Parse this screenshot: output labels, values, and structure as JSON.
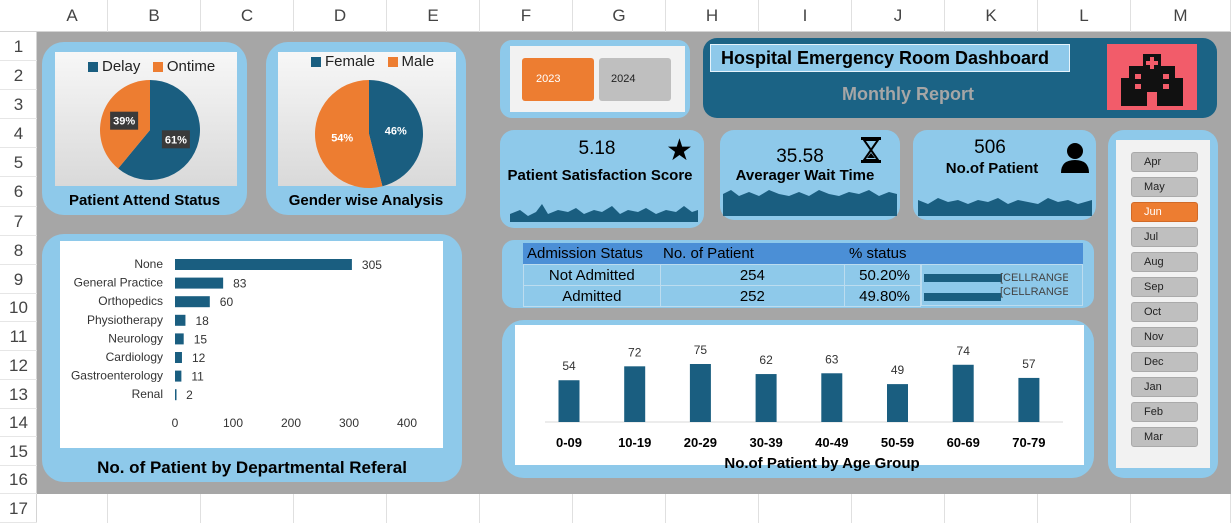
{
  "columns": [
    "A",
    "B",
    "C",
    "D",
    "E",
    "F",
    "G",
    "H",
    "I",
    "J",
    "K",
    "L",
    "M"
  ],
  "rows": [
    "1",
    "2",
    "3",
    "4",
    "5",
    "6",
    "7",
    "8",
    "9",
    "10",
    "11",
    "12",
    "13",
    "14",
    "15",
    "16",
    "17"
  ],
  "colors": {
    "accent": "#1a5e80",
    "orange": "#ed7d31",
    "panel": "#8ec9ea",
    "bg": "#a6a6a6",
    "title_bar": "#1b6385"
  },
  "attend": {
    "title": "Patient Attend Status",
    "legend": [
      "Delay",
      "Ontime"
    ],
    "values": [
      61,
      39
    ],
    "labels": [
      "61%",
      "39%"
    ]
  },
  "gender": {
    "title": "Gender wise Analysis",
    "legend": [
      "Female",
      "Male"
    ],
    "values": [
      46,
      54
    ],
    "labels": [
      "46%",
      "54%"
    ]
  },
  "years": {
    "y2023": "2023",
    "y2024": "2024"
  },
  "header": {
    "title": "Hospital Emergency Room Dashboard",
    "subtitle": "Monthly Report",
    "icon": "hospital-icon"
  },
  "kpis": {
    "satisfaction": {
      "value": "5.18",
      "label": "Patient Satisfaction Score",
      "icon": "star-icon"
    },
    "wait": {
      "value": "35.58",
      "label": "Averager Wait Time",
      "icon": "hourglass-icon"
    },
    "patients": {
      "value": "506",
      "label": "No.of Patient",
      "icon": "person-icon"
    }
  },
  "admission": {
    "headers": [
      "Admission Status",
      "No. of Patient",
      "% status"
    ],
    "rows": [
      {
        "status": "Not Admitted",
        "count": "254",
        "pct": "50.20%",
        "bar": 0.502,
        "range": "[CELLRANGE]"
      },
      {
        "status": "Admitted",
        "count": "252",
        "pct": "49.80%",
        "bar": 0.498,
        "range": "[CELLRANGE]"
      }
    ]
  },
  "months": [
    "Apr",
    "May",
    "Jun",
    "Jul",
    "Aug",
    "Sep",
    "Oct",
    "Nov",
    "Dec",
    "Jan",
    "Feb",
    "Mar"
  ],
  "selected_month": "Jun",
  "chart_data": [
    {
      "type": "pie",
      "title": "Patient Attend Status",
      "categories": [
        "Delay",
        "Ontime"
      ],
      "values": [
        61,
        39
      ],
      "legend": "top"
    },
    {
      "type": "pie",
      "title": "Gender wise Analysis",
      "categories": [
        "Female",
        "Male"
      ],
      "values": [
        46,
        54
      ],
      "legend": "top"
    },
    {
      "type": "bar",
      "orientation": "horizontal",
      "title": "No. of Patient by Departmental Referal",
      "categories": [
        "None",
        "General Practice",
        "Orthopedics",
        "Physiotherapy",
        "Neurology",
        "Cardiology",
        "Gastroenterology",
        "Renal"
      ],
      "values": [
        305,
        83,
        60,
        18,
        15,
        12,
        11,
        2
      ],
      "xlim": [
        0,
        400
      ],
      "xticks": [
        "0",
        "100",
        "200",
        "300",
        "400"
      ]
    },
    {
      "type": "bar",
      "title": "No.of Patient by Age Group",
      "categories": [
        "0-09",
        "10-19",
        "20-29",
        "30-39",
        "40-49",
        "50-59",
        "60-69",
        "70-79"
      ],
      "values": [
        54,
        72,
        75,
        62,
        63,
        49,
        74,
        57
      ]
    }
  ]
}
